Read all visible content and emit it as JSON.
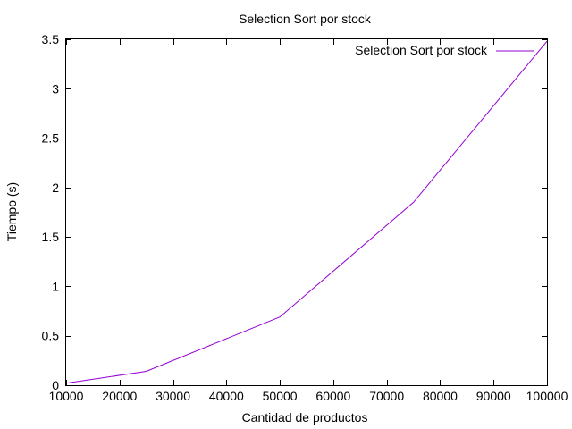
{
  "chart_data": {
    "type": "line",
    "title": "Selection Sort por stock",
    "xlabel": "Cantidad de productos",
    "ylabel": "Tiempo (s)",
    "xlim": [
      10000,
      100000
    ],
    "ylim": [
      0,
      3.5
    ],
    "xticks": [
      10000,
      20000,
      30000,
      40000,
      50000,
      60000,
      70000,
      80000,
      90000,
      100000
    ],
    "yticks": [
      0,
      0.5,
      1,
      1.5,
      2,
      2.5,
      3,
      3.5
    ],
    "grid": false,
    "legend_position": "top-right",
    "series": [
      {
        "name": "Selection Sort por stock",
        "color": "#9400d3",
        "x": [
          10000,
          25000,
          50000,
          75000,
          100000
        ],
        "y": [
          0.02,
          0.14,
          0.69,
          1.85,
          3.48
        ]
      }
    ]
  }
}
